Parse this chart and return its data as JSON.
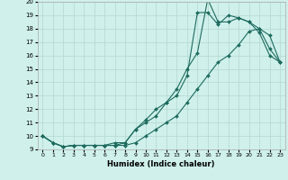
{
  "xlabel": "Humidex (Indice chaleur)",
  "bg_color": "#cff0eb",
  "grid_color": "#b8dbd6",
  "line_color": "#1e6b5e",
  "xlim": [
    -0.5,
    23.5
  ],
  "ylim": [
    9,
    20
  ],
  "xticks": [
    0,
    1,
    2,
    3,
    4,
    5,
    6,
    7,
    8,
    9,
    10,
    11,
    12,
    13,
    14,
    15,
    16,
    17,
    18,
    19,
    20,
    21,
    22,
    23
  ],
  "yticks": [
    9,
    10,
    11,
    12,
    13,
    14,
    15,
    16,
    17,
    18,
    19,
    20
  ],
  "line1_x": [
    0,
    1,
    2,
    3,
    4,
    5,
    6,
    7,
    8,
    9,
    10,
    11,
    12,
    13,
    14,
    15,
    16,
    17,
    18,
    19,
    20,
    21,
    22,
    23
  ],
  "line1_y": [
    10.0,
    9.5,
    9.2,
    9.3,
    9.3,
    9.3,
    9.3,
    9.5,
    9.5,
    10.5,
    11.0,
    11.5,
    12.5,
    13.0,
    14.5,
    19.2,
    19.2,
    18.3,
    19.0,
    18.8,
    18.5,
    17.7,
    16.0,
    15.5
  ],
  "line2_x": [
    0,
    1,
    2,
    3,
    4,
    5,
    6,
    7,
    8,
    9,
    10,
    11,
    12,
    13,
    14,
    15,
    16,
    17,
    18,
    19,
    20,
    21,
    22,
    23
  ],
  "line2_y": [
    10.0,
    9.5,
    9.2,
    9.3,
    9.3,
    9.3,
    9.3,
    9.3,
    9.5,
    10.5,
    11.2,
    12.0,
    12.5,
    13.5,
    15.0,
    16.2,
    20.2,
    18.5,
    18.5,
    18.8,
    18.5,
    18.0,
    16.5,
    15.5
  ],
  "line3_x": [
    0,
    1,
    2,
    3,
    4,
    5,
    6,
    7,
    8,
    9,
    10,
    11,
    12,
    13,
    14,
    15,
    16,
    17,
    18,
    19,
    20,
    21,
    22,
    23
  ],
  "line3_y": [
    10.0,
    9.5,
    9.2,
    9.3,
    9.3,
    9.3,
    9.3,
    9.3,
    9.3,
    9.5,
    10.0,
    10.5,
    11.0,
    11.5,
    12.5,
    13.5,
    14.5,
    15.5,
    16.0,
    16.8,
    17.8,
    18.0,
    17.5,
    15.5
  ]
}
